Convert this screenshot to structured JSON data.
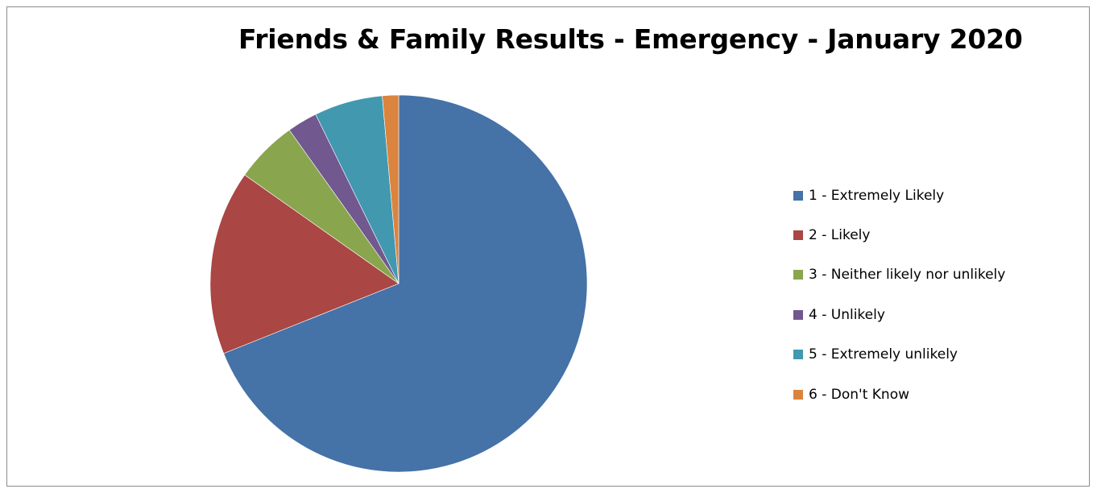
{
  "chart_data": {
    "type": "pie",
    "title": "Friends & Family Results - Emergency - January 2020",
    "legend_position": "right",
    "categories": [
      "1 - Extremely Likely",
      "2 - Likely",
      "3 - Neither likely nor unlikely",
      "4 - Unlikely",
      "5 - Extremely unlikely",
      "6 - Don't Know"
    ],
    "values": [
      69.3,
      15.9,
      5.4,
      2.6,
      5.9,
      1.4
    ],
    "colors": [
      "#4572A7",
      "#AA4643",
      "#89A54E",
      "#71588F",
      "#4198AF",
      "#DB843D"
    ]
  }
}
